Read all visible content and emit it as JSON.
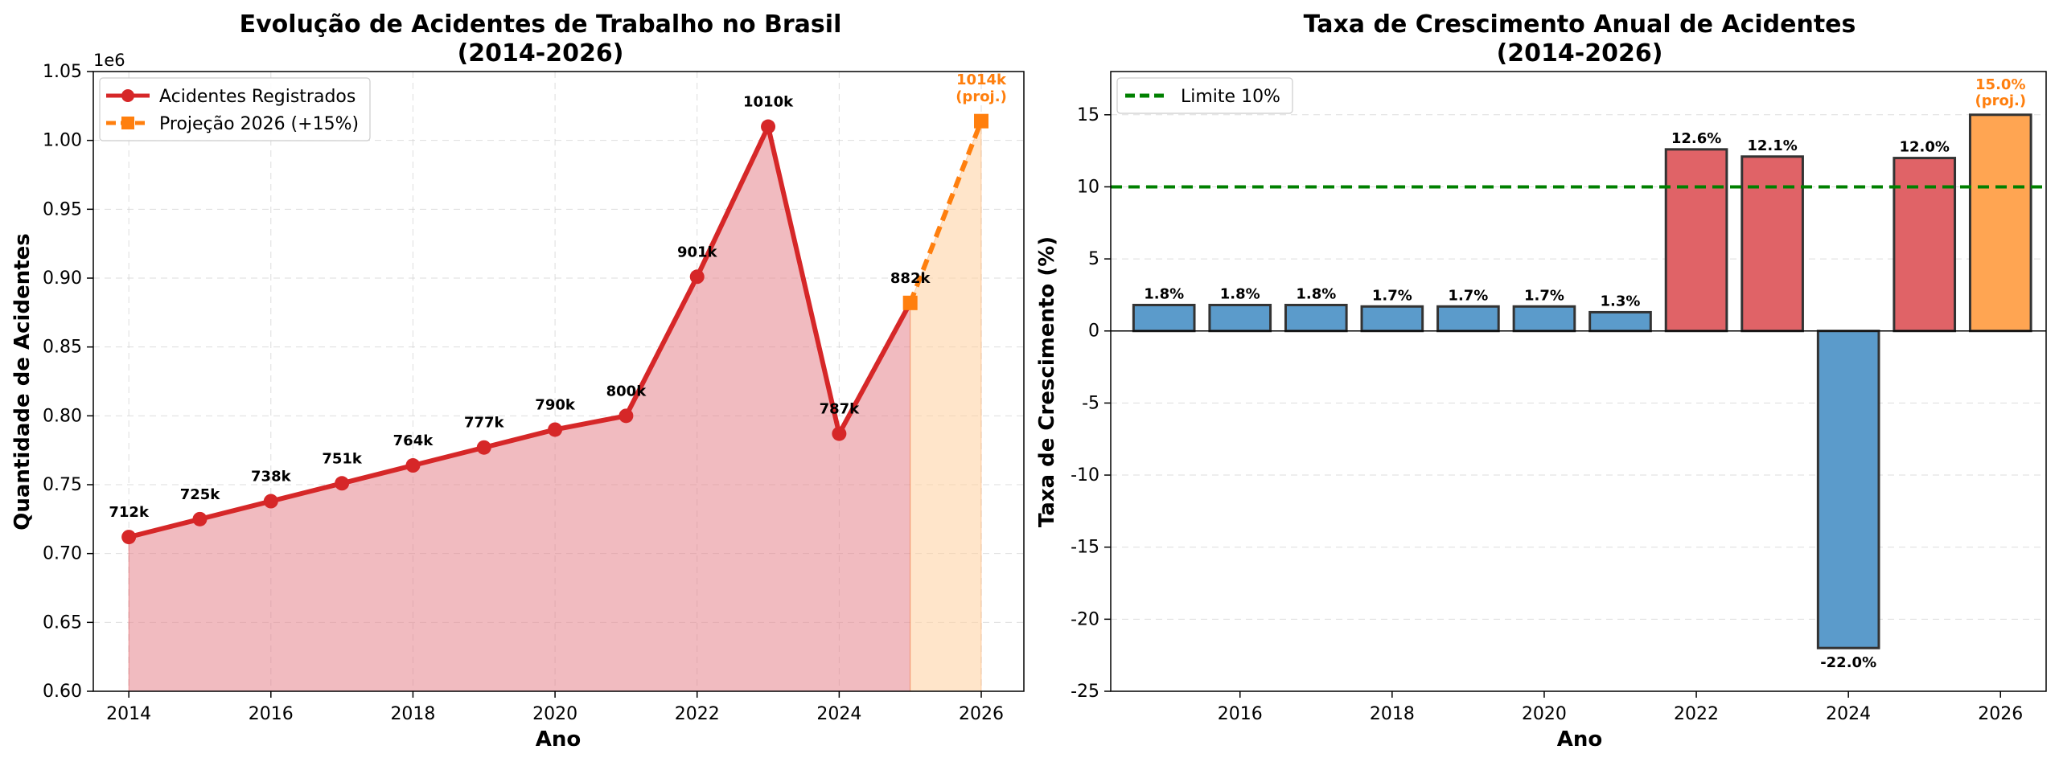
{
  "chart_data": [
    {
      "type": "line",
      "title_line1": "Evolução de Acidentes de Trabalho no Brasil",
      "title_line2": "(2014-2026)",
      "xlabel": "Ano",
      "ylabel": "Quantidade de Acidentes",
      "y_offset_label": "1e6",
      "xlim": [
        2013.5,
        2026.6
      ],
      "ylim": [
        0.6,
        1.05
      ],
      "x_ticks": [
        "2014",
        "2016",
        "2018",
        "2020",
        "2022",
        "2024",
        "2026"
      ],
      "y_ticks": [
        "0.60",
        "0.65",
        "0.70",
        "0.75",
        "0.80",
        "0.85",
        "0.90",
        "0.95",
        "1.00",
        "1.05"
      ],
      "grid": true,
      "legend_position": "top-left",
      "series": [
        {
          "name": "Acidentes Registrados",
          "color": "#d62728",
          "x": [
            2014,
            2015,
            2016,
            2017,
            2018,
            2019,
            2020,
            2021,
            2022,
            2023,
            2024,
            2025
          ],
          "values": [
            0.712,
            0.725,
            0.738,
            0.751,
            0.764,
            0.777,
            0.79,
            0.8,
            0.901,
            1.01,
            0.787,
            0.882
          ],
          "labels": [
            "712k",
            "725k",
            "738k",
            "751k",
            "764k",
            "777k",
            "790k",
            "800k",
            "901k",
            "1010k",
            "787k",
            "882k"
          ]
        },
        {
          "name": "Projeção 2026 (+15%)",
          "color": "#ff7f0e",
          "x": [
            2025,
            2026
          ],
          "values": [
            0.882,
            1.014
          ],
          "labels": [
            "1014k",
            "(proj.)"
          ]
        }
      ]
    },
    {
      "type": "bar",
      "title_line1": "Taxa de Crescimento Anual de Acidentes",
      "title_line2": "(2014-2026)",
      "xlabel": "Ano",
      "ylabel": "Taxa de Crescimento (%)",
      "xlim": [
        2014.3,
        2026.6
      ],
      "ylim": [
        -25,
        18
      ],
      "x_ticks": [
        "2016",
        "2018",
        "2020",
        "2022",
        "2024",
        "2026"
      ],
      "y_ticks": [
        "-25",
        "-20",
        "-15",
        "-10",
        "-5",
        "0",
        "5",
        "10",
        "15"
      ],
      "grid": true,
      "legend_position": "top-left",
      "categories": [
        "2015",
        "2016",
        "2017",
        "2018",
        "2019",
        "2020",
        "2021",
        "2022",
        "2023",
        "2024",
        "2025",
        "2026"
      ],
      "values": [
        1.8,
        1.8,
        1.8,
        1.7,
        1.7,
        1.7,
        1.3,
        12.6,
        12.1,
        -22.0,
        12.0,
        15.0
      ],
      "labels": [
        "1.8%",
        "1.8%",
        "1.8%",
        "1.7%",
        "1.7%",
        "1.7%",
        "1.3%",
        "12.6%",
        "12.1%",
        "-22.0%",
        "12.0%",
        "15.0%"
      ],
      "projection_note": "(proj.)",
      "threshold": {
        "value": 10,
        "label": "Limite 10%",
        "color": "#008000"
      },
      "colors": {
        "normal": "#5b9bcb",
        "high": "#e06367",
        "projection": "#ffa552"
      }
    }
  ]
}
